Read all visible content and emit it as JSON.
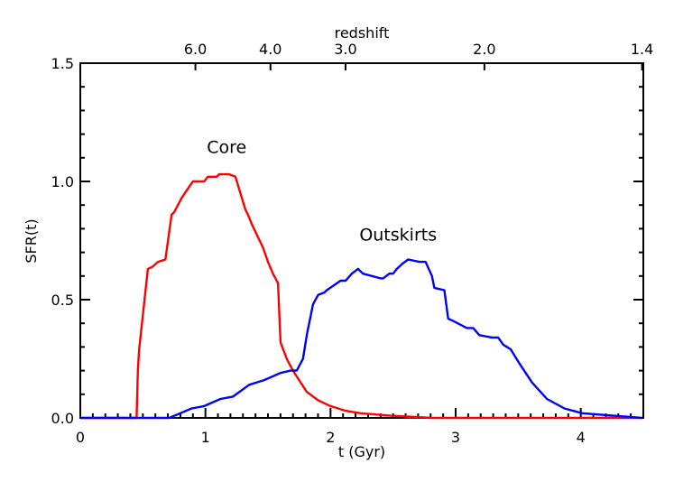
{
  "chart_data": {
    "type": "line",
    "title": "",
    "xlabel": "t (Gyr)",
    "ylabel": "SFR(t)",
    "top_axis_label": "redshift",
    "xlim": [
      0,
      4.5
    ],
    "ylim": [
      0,
      1.5
    ],
    "grid": false,
    "legend": "none (inline annotations)",
    "x_ticks": [
      {
        "value": 0,
        "label": "0"
      },
      {
        "value": 1,
        "label": "1"
      },
      {
        "value": 2,
        "label": "2"
      },
      {
        "value": 3,
        "label": "3"
      },
      {
        "value": 4,
        "label": "4"
      }
    ],
    "y_ticks": [
      {
        "value": 0.0,
        "label": "0.0"
      },
      {
        "value": 0.5,
        "label": "0.5"
      },
      {
        "value": 1.0,
        "label": "1.0"
      },
      {
        "value": 1.5,
        "label": "1.5"
      }
    ],
    "top_ticks": [
      {
        "t": 0.92,
        "label": "6.0"
      },
      {
        "t": 1.52,
        "label": "4.0"
      },
      {
        "t": 2.12,
        "label": "3.0"
      },
      {
        "t": 3.23,
        "label": "2.0"
      },
      {
        "t": 4.49,
        "label": "1.4"
      }
    ],
    "annotations": [
      {
        "text": "Core",
        "t": 1.17,
        "sfr": 1.12
      },
      {
        "text": "Outskirts",
        "t": 2.54,
        "sfr": 0.75
      }
    ],
    "series": [
      {
        "name": "Core",
        "color": "#ff0000",
        "x": [
          0.0,
          0.45,
          0.46,
          0.47,
          0.54,
          0.58,
          0.62,
          0.68,
          0.73,
          0.75,
          0.81,
          0.86,
          0.9,
          0.99,
          1.02,
          1.09,
          1.11,
          1.19,
          1.24,
          1.32,
          1.34,
          1.37,
          1.46,
          1.5,
          1.54,
          1.58,
          1.6,
          1.65,
          1.7,
          1.81,
          1.9,
          2.0,
          2.12,
          2.24,
          2.47,
          2.81,
          4.49
        ],
        "y": [
          0.0,
          0.0,
          0.2,
          0.29,
          0.63,
          0.64,
          0.66,
          0.67,
          0.86,
          0.87,
          0.93,
          0.97,
          1.0,
          1.0,
          1.02,
          1.02,
          1.03,
          1.03,
          1.02,
          0.88,
          0.86,
          0.82,
          0.72,
          0.66,
          0.61,
          0.57,
          0.32,
          0.25,
          0.2,
          0.11,
          0.075,
          0.05,
          0.03,
          0.02,
          0.01,
          0.0,
          0.0
        ]
      },
      {
        "name": "Outskirts",
        "color": "#0000ff",
        "x": [
          0.0,
          0.71,
          0.8,
          0.89,
          0.99,
          1.12,
          1.22,
          1.35,
          1.47,
          1.6,
          1.68,
          1.73,
          1.78,
          1.81,
          1.86,
          1.9,
          1.95,
          1.97,
          2.08,
          2.12,
          2.17,
          2.22,
          2.26,
          2.4,
          2.42,
          2.47,
          2.5,
          2.53,
          2.57,
          2.62,
          2.71,
          2.76,
          2.81,
          2.83,
          2.91,
          2.94,
          2.98,
          3.09,
          3.14,
          3.19,
          3.29,
          3.34,
          3.38,
          3.44,
          3.51,
          3.61,
          3.73,
          3.87,
          4.01,
          4.49
        ],
        "y": [
          0.0,
          0.0,
          0.02,
          0.04,
          0.05,
          0.08,
          0.09,
          0.14,
          0.16,
          0.19,
          0.2,
          0.2,
          0.25,
          0.35,
          0.48,
          0.52,
          0.53,
          0.54,
          0.58,
          0.58,
          0.61,
          0.63,
          0.61,
          0.59,
          0.59,
          0.61,
          0.61,
          0.63,
          0.65,
          0.67,
          0.66,
          0.66,
          0.6,
          0.55,
          0.54,
          0.42,
          0.41,
          0.38,
          0.38,
          0.35,
          0.34,
          0.34,
          0.31,
          0.29,
          0.23,
          0.15,
          0.08,
          0.04,
          0.02,
          0.0
        ]
      }
    ]
  }
}
